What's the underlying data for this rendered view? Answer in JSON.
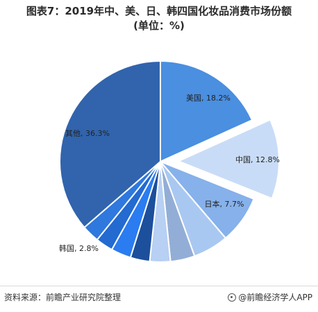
{
  "title": {
    "line1": "图表7：2019年中、美、日、韩四国化妆品消费市场份额",
    "line2": "(单位：%)"
  },
  "chart_data": {
    "type": "pie",
    "slices": [
      {
        "label": "美国, 18.2%",
        "value": 18.2,
        "color": "#4a8fe0",
        "exploded": false
      },
      {
        "label": "中国, 12.8%",
        "value": 12.8,
        "color": "#c9dcf7",
        "exploded": true
      },
      {
        "label": "日本, 7.7%",
        "value": 7.7,
        "color": "#86b1ea",
        "exploded": false
      },
      {
        "label": "",
        "value": 5.7,
        "color": "#a9c8f1",
        "exploded": false
      },
      {
        "label": "",
        "value": 3.9,
        "color": "#93aed6",
        "exploded": false
      },
      {
        "label": "",
        "value": 3.3,
        "color": "#b7d0f3",
        "exploded": false
      },
      {
        "label": "",
        "value": 3.1,
        "color": "#1c4f9c",
        "exploded": false
      },
      {
        "label": "",
        "value": 3.2,
        "color": "#2a7cf0",
        "exploded": false
      },
      {
        "label": "",
        "value": 2.8,
        "color": "#236ad1",
        "exploded": false
      },
      {
        "label": "韩国, 2.8%",
        "value": 2.8,
        "color": "#2e78de",
        "exploded": false
      },
      {
        "label": "其他, 36.3%",
        "value": 36.3,
        "color": "#3164ad",
        "exploded": false
      }
    ]
  },
  "footer": {
    "source": "资料来源：前瞻产业研究院整理",
    "brand": "@前瞻经济学人APP"
  }
}
